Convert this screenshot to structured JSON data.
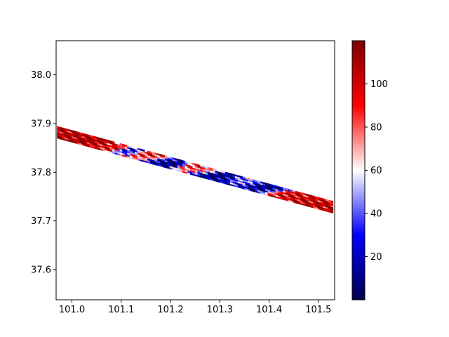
{
  "chart_data": {
    "type": "heatmap",
    "title": "",
    "xlabel": "",
    "ylabel": "",
    "xlim": [
      100.968,
      101.533
    ],
    "ylim": [
      37.538,
      38.07
    ],
    "x_ticks": [
      101.0,
      101.1,
      101.2,
      101.3,
      101.4,
      101.5
    ],
    "x_tick_labels": [
      "101.0",
      "101.1",
      "101.2",
      "101.3",
      "101.4",
      "101.5"
    ],
    "y_ticks": [
      37.6,
      37.7,
      37.8,
      37.9,
      38.0
    ],
    "y_tick_labels": [
      "37.6",
      "37.7",
      "37.8",
      "37.9",
      "38.0"
    ],
    "grid": false,
    "colormap": "seismic",
    "colormap_stops": [
      "#00004c",
      "#0000ff",
      "#ffffff",
      "#ff0000",
      "#7f0000"
    ],
    "colorbar": {
      "range": [
        0,
        120
      ],
      "ticks": [
        20,
        40,
        60,
        80,
        100
      ],
      "tick_labels": [
        "20",
        "40",
        "60",
        "80",
        "100"
      ]
    },
    "swath": {
      "start": [
        100.97,
        37.882
      ],
      "end": [
        101.53,
        37.728
      ],
      "lat_halfwidth": 0.0125
    },
    "field_samples": [
      {
        "x": 100.98,
        "y": 37.875,
        "v": 108
      },
      {
        "x": 101.03,
        "y": 37.865,
        "v": 112
      },
      {
        "x": 101.08,
        "y": 37.85,
        "v": 95
      },
      {
        "x": 101.12,
        "y": 37.845,
        "v": 30
      },
      {
        "x": 101.16,
        "y": 37.838,
        "v": 90
      },
      {
        "x": 101.2,
        "y": 37.818,
        "v": 10
      },
      {
        "x": 101.25,
        "y": 37.812,
        "v": 82
      },
      {
        "x": 101.3,
        "y": 37.788,
        "v": 8
      },
      {
        "x": 101.35,
        "y": 37.784,
        "v": 45
      },
      {
        "x": 101.4,
        "y": 37.77,
        "v": 12
      },
      {
        "x": 101.45,
        "y": 37.752,
        "v": 100
      },
      {
        "x": 101.51,
        "y": 37.735,
        "v": 105
      }
    ]
  }
}
